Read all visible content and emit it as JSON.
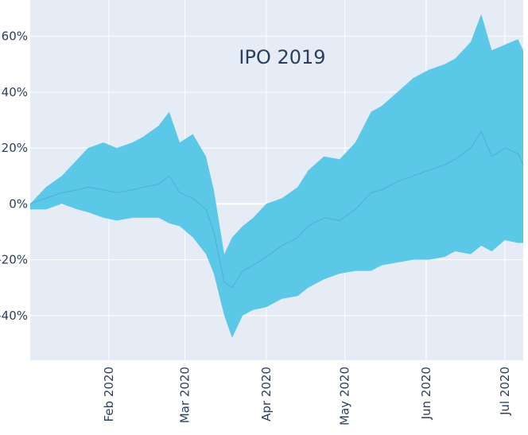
{
  "chart_data": {
    "type": "area",
    "title": "IPO 2019",
    "xlabel": "",
    "ylabel": "",
    "x_range": [
      "2020-01-02",
      "2020-07-08"
    ],
    "y_range": [
      -0.56,
      0.73
    ],
    "y_ticks": [
      -0.4,
      -0.2,
      0,
      0.2,
      0.4,
      0.6
    ],
    "y_tick_labels": [
      "-40%",
      "-20%",
      "0%",
      "20%",
      "40%",
      "60%"
    ],
    "x_ticks": [
      "2020-02-01",
      "2020-03-01",
      "2020-04-01",
      "2020-05-01",
      "2020-06-01",
      "2020-07-01"
    ],
    "x_tick_labels": [
      "Feb 2020",
      "Mar 2020",
      "Apr 2020",
      "May 2020",
      "Jun 2020",
      "Jul 2020"
    ],
    "grid": true,
    "colors": {
      "band": "#5bc8e8",
      "line": "#4fb3d6",
      "plot_bg": "#e5ecf6",
      "grid": "#ffffff",
      "text": "#2a3f5f"
    },
    "band": {
      "x": [
        "2020-01-02",
        "2020-01-08",
        "2020-01-14",
        "2020-01-20",
        "2020-01-24",
        "2020-01-30",
        "2020-02-04",
        "2020-02-10",
        "2020-02-14",
        "2020-02-20",
        "2020-02-24",
        "2020-02-28",
        "2020-03-04",
        "2020-03-09",
        "2020-03-12",
        "2020-03-16",
        "2020-03-19",
        "2020-03-23",
        "2020-03-27",
        "2020-04-01",
        "2020-04-07",
        "2020-04-13",
        "2020-04-17",
        "2020-04-23",
        "2020-04-29",
        "2020-05-05",
        "2020-05-11",
        "2020-05-15",
        "2020-05-21",
        "2020-05-27",
        "2020-06-02",
        "2020-06-08",
        "2020-06-12",
        "2020-06-18",
        "2020-06-22",
        "2020-06-26",
        "2020-07-01",
        "2020-07-06",
        "2020-07-08"
      ],
      "upper": [
        0.0,
        0.06,
        0.1,
        0.16,
        0.2,
        0.22,
        0.2,
        0.22,
        0.24,
        0.28,
        0.33,
        0.22,
        0.25,
        0.17,
        0.05,
        -0.18,
        -0.12,
        -0.08,
        -0.05,
        0.0,
        0.02,
        0.06,
        0.12,
        0.17,
        0.16,
        0.22,
        0.33,
        0.35,
        0.4,
        0.45,
        0.48,
        0.5,
        0.52,
        0.58,
        0.68,
        0.55,
        0.57,
        0.59,
        0.55
      ],
      "lower": [
        -0.02,
        -0.02,
        0.0,
        -0.02,
        -0.03,
        -0.05,
        -0.06,
        -0.05,
        -0.05,
        -0.05,
        -0.07,
        -0.08,
        -0.12,
        -0.18,
        -0.25,
        -0.4,
        -0.48,
        -0.4,
        -0.38,
        -0.37,
        -0.34,
        -0.33,
        -0.3,
        -0.27,
        -0.25,
        -0.24,
        -0.24,
        -0.22,
        -0.21,
        -0.2,
        -0.2,
        -0.19,
        -0.17,
        -0.18,
        -0.15,
        -0.17,
        -0.13,
        -0.14,
        -0.14
      ],
      "mid": [
        0.0,
        0.02,
        0.04,
        0.05,
        0.06,
        0.05,
        0.04,
        0.05,
        0.06,
        0.07,
        0.1,
        0.04,
        0.02,
        -0.02,
        -0.1,
        -0.28,
        -0.3,
        -0.24,
        -0.22,
        -0.19,
        -0.15,
        -0.12,
        -0.08,
        -0.05,
        -0.06,
        -0.02,
        0.04,
        0.05,
        0.08,
        0.1,
        0.12,
        0.14,
        0.16,
        0.2,
        0.26,
        0.17,
        0.2,
        0.18,
        0.14
      ]
    }
  }
}
